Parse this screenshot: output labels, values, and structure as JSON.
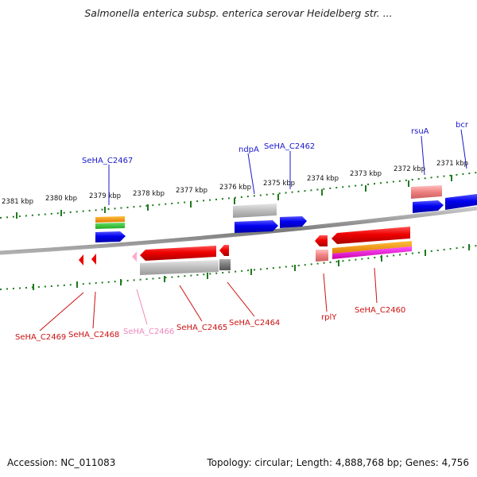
{
  "title": "Salmonella enterica subsp. enterica serovar Heidelberg str. ...",
  "footer": {
    "accession": "Accession: NC_011083",
    "info": "Topology: circular; Length: 4,888,768 bp; Genes: 4,756"
  },
  "colors": {
    "backbone": "#7a7a7a",
    "tick": "#1f7a1f",
    "forward_label": "#1a1acc",
    "reverse_label": "#cc1111",
    "pseudo_label": "#ee88bb"
  },
  "kbp_labels": [
    "2381 kbp",
    "2380 kbp",
    "2379 kbp",
    "2378 kbp",
    "2377 kbp",
    "2376 kbp",
    "2375 kbp",
    "2374 kbp",
    "2373 kbp",
    "2372 kbp",
    "2371 kbp"
  ],
  "forward_labels": [
    "SeHA_C2467",
    "ndpA",
    "SeHA_C2462",
    "rsuA",
    "bcr"
  ],
  "reverse_labels": [
    "SeHA_C2469",
    "SeHA_C2468",
    "SeHA_C2466",
    "SeHA_C2465",
    "SeHA_C2464",
    "rplY",
    "SeHA_C2460"
  ]
}
